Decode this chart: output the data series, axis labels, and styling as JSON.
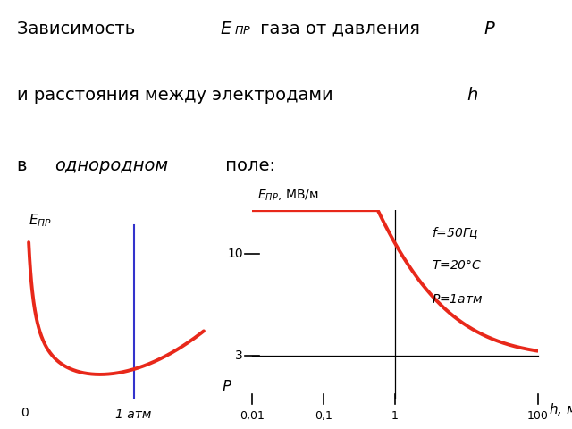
{
  "curve_color": "#e8281a",
  "vline_color": "#3333cc",
  "bg_color": "#ffffff",
  "right_xticks": [
    0.01,
    0.1,
    1,
    100
  ],
  "right_xtick_labels": [
    "0,01",
    "0,1",
    "1",
    "100"
  ],
  "right_yticks": [
    3,
    10
  ]
}
